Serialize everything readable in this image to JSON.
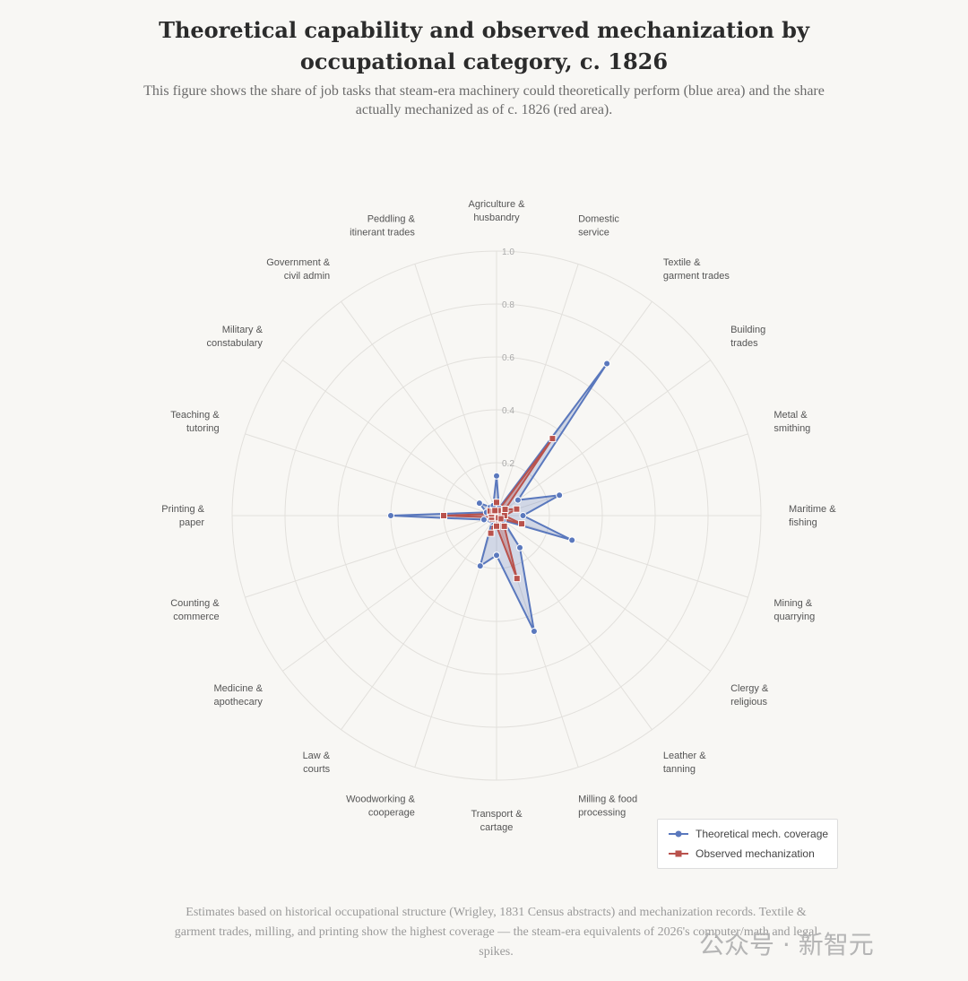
{
  "title": "Theoretical capability and observed mechanization by occupational category, c. 1826",
  "subtitle": "This figure shows the share of job tasks that steam-era machinery could theoretically perform (blue area) and the share actually mechanized as of c. 1826 (red area).",
  "footer": "Estimates based on historical occupational structure (Wrigley, 1831 Census abstracts) and mechanization records. Textile & garment trades, milling, and printing show the highest coverage — the steam-era equivalents of 2026's computer/math and legal spikes.",
  "watermark": "公众号 · 新智元",
  "chart_data": {
    "type": "radar",
    "categories": [
      [
        "Agriculture &",
        "husbandry"
      ],
      [
        "Domestic",
        "service"
      ],
      [
        "Textile &",
        "garment trades"
      ],
      [
        "Building",
        "trades"
      ],
      [
        "Metal &",
        "smithing"
      ],
      [
        "Maritime &",
        "fishing"
      ],
      [
        "Mining &",
        "quarrying"
      ],
      [
        "Clergy &",
        "religious"
      ],
      [
        "Leather &",
        "tanning"
      ],
      [
        "Milling & food",
        "processing"
      ],
      [
        "Transport &",
        "cartage"
      ],
      [
        "Woodworking &",
        "cooperage"
      ],
      [
        "Law &",
        "courts"
      ],
      [
        "Medicine &",
        "apothecary"
      ],
      [
        "Counting &",
        "commerce"
      ],
      [
        "Printing &",
        "paper"
      ],
      [
        "Teaching &",
        "tutoring"
      ],
      [
        "Military &",
        "constabulary"
      ],
      [
        "Government &",
        "civil admin"
      ],
      [
        "Peddling &",
        "itinerant trades"
      ]
    ],
    "rlim": [
      0,
      1.0
    ],
    "ticks": [
      "0.2",
      "0.4",
      "0.6",
      "0.8",
      "1.0"
    ],
    "tick_values": [
      0.2,
      0.4,
      0.6,
      0.8,
      1.0
    ],
    "series": [
      {
        "name": "Theoretical mech. coverage",
        "color": "#5a78bd",
        "marker": "circle",
        "values": [
          0.15,
          0.03,
          0.71,
          0.1,
          0.25,
          0.1,
          0.3,
          0.03,
          0.15,
          0.46,
          0.15,
          0.2,
          0.03,
          0.03,
          0.05,
          0.4,
          0.04,
          0.08,
          0.04,
          0.04
        ]
      },
      {
        "name": "Observed mechanization",
        "color": "#b9524c",
        "marker": "square",
        "values": [
          0.05,
          0.02,
          0.36,
          0.04,
          0.08,
          0.03,
          0.1,
          0.02,
          0.05,
          0.25,
          0.04,
          0.07,
          0.01,
          0.02,
          0.02,
          0.2,
          0.02,
          0.03,
          0.02,
          0.02
        ]
      }
    ],
    "legend_position": "bottom-right",
    "grid": true
  }
}
